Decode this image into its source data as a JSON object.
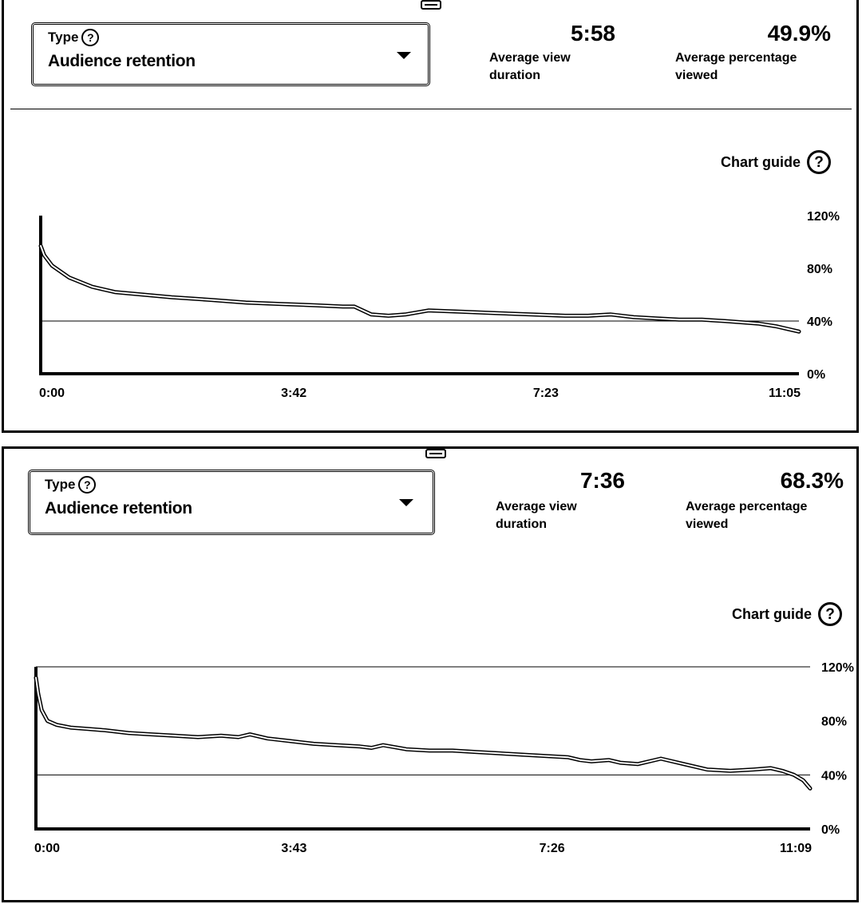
{
  "panels": [
    {
      "type_label": "Type",
      "type_value": "Audience retention",
      "help_glyph": "?",
      "metrics": [
        {
          "value": "5:58",
          "label_line1": "Average view",
          "label_line2": "duration"
        },
        {
          "value": "49.9%",
          "label_line1": "Average percentage",
          "label_line2": "viewed"
        }
      ],
      "chart_guide_label": "Chart guide"
    },
    {
      "type_label": "Type",
      "type_value": "Audience retention",
      "help_glyph": "?",
      "metrics": [
        {
          "value": "7:36",
          "label_line1": "Average view",
          "label_line2": "duration"
        },
        {
          "value": "68.3%",
          "label_line1": "Average percentage",
          "label_line2": "viewed"
        }
      ],
      "chart_guide_label": "Chart guide"
    }
  ],
  "icons": {
    "help": "question-circle-icon",
    "dropdown": "chevron-down-icon",
    "drag": "drag-handle-icon"
  },
  "chart_data": [
    {
      "type": "line",
      "title": "",
      "xlabel": "",
      "ylabel": "",
      "x_unit": "seconds",
      "x_tick_labels": [
        "0:00",
        "3:42",
        "7:23",
        "11:05"
      ],
      "x_tick_values": [
        0,
        222,
        443,
        665
      ],
      "xlim": [
        0,
        665
      ],
      "y_tick_labels": [
        "120%",
        "80%",
        "40%",
        "0%"
      ],
      "y_tick_values": [
        120,
        80,
        40,
        0
      ],
      "ylim": [
        0,
        120
      ],
      "reference_line": 40,
      "series": [
        {
          "x": [
            0,
            3,
            10,
            25,
            45,
            65,
            90,
            115,
            150,
            180,
            210,
            240,
            265,
            275,
            290,
            305,
            320,
            340,
            370,
            400,
            430,
            460,
            480,
            500,
            520,
            540,
            560,
            580,
            600,
            615,
            630,
            645,
            655,
            665
          ],
          "y": [
            97,
            90,
            82,
            73,
            66,
            62,
            60,
            58,
            56,
            54,
            53,
            52,
            51,
            51,
            45,
            44,
            45,
            48,
            47,
            46,
            45,
            44,
            44,
            45,
            43,
            42,
            41,
            41,
            40,
            39,
            38,
            36,
            34,
            32
          ]
        }
      ]
    },
    {
      "type": "line",
      "title": "",
      "xlabel": "",
      "ylabel": "",
      "x_unit": "seconds",
      "x_tick_labels": [
        "0:00",
        "3:43",
        "7:26",
        "11:09"
      ],
      "x_tick_values": [
        0,
        223,
        446,
        669
      ],
      "xlim": [
        0,
        669
      ],
      "y_tick_labels": [
        "120%",
        "80%",
        "40%",
        "0%"
      ],
      "y_tick_values": [
        120,
        80,
        40,
        0
      ],
      "ylim": [
        0,
        120
      ],
      "reference_line": 40,
      "series": [
        {
          "x": [
            0,
            2,
            5,
            10,
            18,
            30,
            45,
            60,
            80,
            100,
            120,
            140,
            160,
            175,
            185,
            200,
            220,
            240,
            260,
            280,
            290,
            300,
            320,
            340,
            360,
            380,
            400,
            420,
            440,
            460,
            470,
            480,
            495,
            505,
            520,
            540,
            560,
            580,
            600,
            620,
            635,
            645,
            655,
            663,
            669
          ],
          "y": [
            112,
            100,
            88,
            80,
            77,
            75,
            74,
            73,
            71,
            70,
            69,
            68,
            69,
            68,
            70,
            67,
            65,
            63,
            62,
            61,
            60,
            62,
            59,
            58,
            58,
            57,
            56,
            55,
            54,
            53,
            51,
            50,
            51,
            49,
            48,
            52,
            48,
            44,
            43,
            44,
            45,
            43,
            40,
            36,
            30
          ]
        }
      ]
    }
  ]
}
